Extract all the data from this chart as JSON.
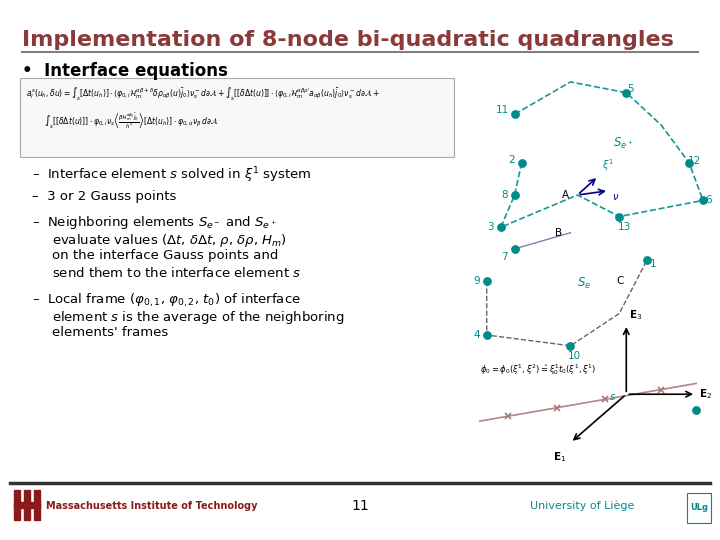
{
  "title": "Implementation of 8-node bi-quadratic quadrangles",
  "title_color": "#8B3A3A",
  "bg_color": "#FFFFFF",
  "separator_color": "#808080",
  "footer_page": "11",
  "footer_left": "Massachusetts Institute of Technology",
  "footer_right": "University of Liège",
  "teal_color": "#008B8B"
}
